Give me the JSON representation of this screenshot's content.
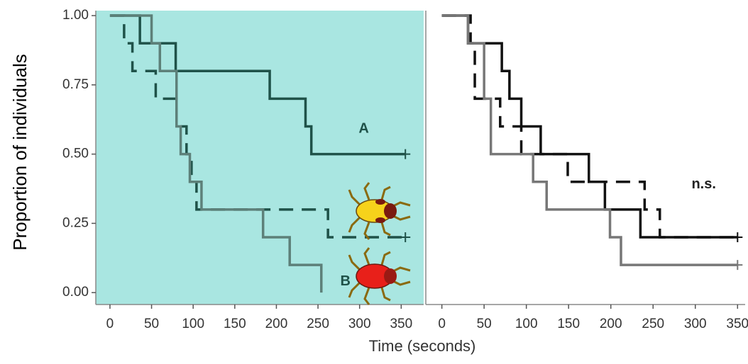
{
  "chart_data": [
    {
      "type": "line",
      "step": true,
      "background": "#a9e6e1",
      "ylabel": "Proportion of individuals",
      "xlabel": "Time (seconds)",
      "xlim": [
        -17,
        377
      ],
      "xticks": [
        0,
        50,
        100,
        150,
        200,
        250,
        300,
        350
      ],
      "ylim": [
        -0.043,
        1.018
      ],
      "yticks": [
        {
          "value": 0,
          "label": "0.00"
        },
        {
          "value": 0.25,
          "label": "0.25"
        },
        {
          "value": 0.5,
          "label": "0.50"
        },
        {
          "value": 0.75,
          "label": "0.75"
        },
        {
          "value": 1,
          "label": "1.00"
        }
      ],
      "series": [
        {
          "color": "#1f5249",
          "dash": false,
          "censor_end": true,
          "x": [
            0,
            36,
            79,
            192,
            235,
            242,
            355
          ],
          "values": [
            1,
            0.9,
            0.8,
            0.7,
            0.6,
            0.5,
            0.5
          ]
        },
        {
          "color": "#1f5249",
          "dash": true,
          "censor_end": true,
          "x": [
            0,
            17,
            27,
            55,
            80,
            92,
            98,
            104,
            262,
            355
          ],
          "values": [
            1,
            0.9,
            0.8,
            0.7,
            0.6,
            0.5,
            0.4,
            0.3,
            0.2,
            0.2
          ]
        },
        {
          "color": "#5d8079",
          "dash": false,
          "censor_end": false,
          "x": [
            0,
            50,
            60,
            80,
            85,
            96,
            110,
            184,
            216,
            254
          ],
          "values": [
            1,
            0.9,
            0.8,
            0.6,
            0.5,
            0.4,
            0.3,
            0.2,
            0.1,
            0
          ]
        }
      ],
      "annotations": [
        {
          "text": "A",
          "x": 305,
          "y": 0.59
        },
        {
          "text": "B",
          "x": 283,
          "y": 0.04
        }
      ]
    },
    {
      "type": "line",
      "step": true,
      "background": "#ffffff",
      "xlim": [
        -19,
        359
      ],
      "xticks": [
        0,
        50,
        100,
        150,
        200,
        250,
        300,
        350
      ],
      "ylim": [
        -0.043,
        1.018
      ],
      "series": [
        {
          "color": "#111111",
          "dash": false,
          "censor_end": true,
          "x": [
            0,
            31,
            71,
            80,
            94,
            117,
            174,
            193,
            235,
            350
          ],
          "values": [
            1,
            0.9,
            0.8,
            0.7,
            0.6,
            0.5,
            0.4,
            0.3,
            0.2,
            0.2
          ]
        },
        {
          "color": "#111111",
          "dash": true,
          "censor_end": false,
          "x": [
            0,
            34,
            39,
            69,
            94,
            149,
            240,
            258,
            350
          ],
          "values": [
            1,
            0.9,
            0.7,
            0.6,
            0.5,
            0.4,
            0.3,
            0.2,
            0.2
          ]
        },
        {
          "color": "#777777",
          "dash": false,
          "censor_end": true,
          "x": [
            0,
            31,
            50,
            58,
            108,
            124,
            199,
            212,
            350
          ],
          "values": [
            1,
            0.9,
            0.7,
            0.5,
            0.4,
            0.3,
            0.2,
            0.1,
            0.1
          ]
        }
      ],
      "annotations": [
        {
          "text": "n.s.",
          "x": 310,
          "y": 0.39
        }
      ]
    }
  ]
}
